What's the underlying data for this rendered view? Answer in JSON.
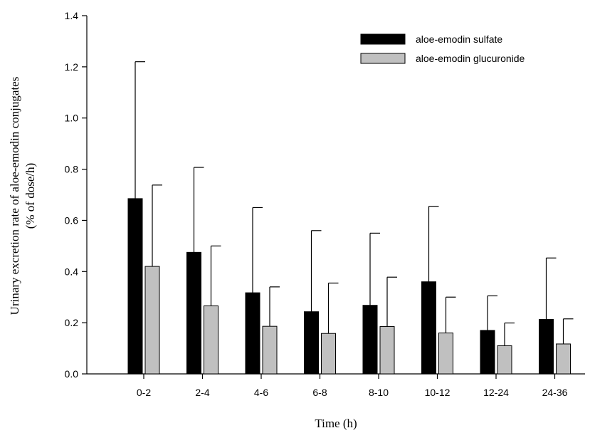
{
  "chart_data": {
    "type": "bar",
    "categories": [
      "0-2",
      "2-4",
      "4-6",
      "6-8",
      "8-10",
      "10-12",
      "12-24",
      "24-36"
    ],
    "series": [
      {
        "name": "aloe-emodin sulfate",
        "color": "#000000",
        "values": [
          0.685,
          0.475,
          0.317,
          0.243,
          0.268,
          0.36,
          0.17,
          0.213
        ],
        "error": [
          0.535,
          0.332,
          0.333,
          0.317,
          0.282,
          0.295,
          0.135,
          0.24
        ]
      },
      {
        "name": "aloe-emodin glucuronide",
        "color": "#c0c0c0",
        "values": [
          0.42,
          0.266,
          0.186,
          0.158,
          0.185,
          0.16,
          0.11,
          0.117
        ],
        "error": [
          0.318,
          0.234,
          0.154,
          0.197,
          0.193,
          0.14,
          0.089,
          0.098
        ]
      }
    ],
    "xlabel": "Time (h)",
    "ylabel_line1": "Urinary excretion rate of aloe-emodin conjugates",
    "ylabel_line2": "(% of dose/h)",
    "ylim": [
      0,
      1.4
    ],
    "yticks": [
      "0.0",
      "0.2",
      "0.4",
      "0.6",
      "0.8",
      "1.0",
      "1.2",
      "1.4"
    ],
    "legend_position": "top-right",
    "grid": false,
    "error_bars": "upper"
  }
}
